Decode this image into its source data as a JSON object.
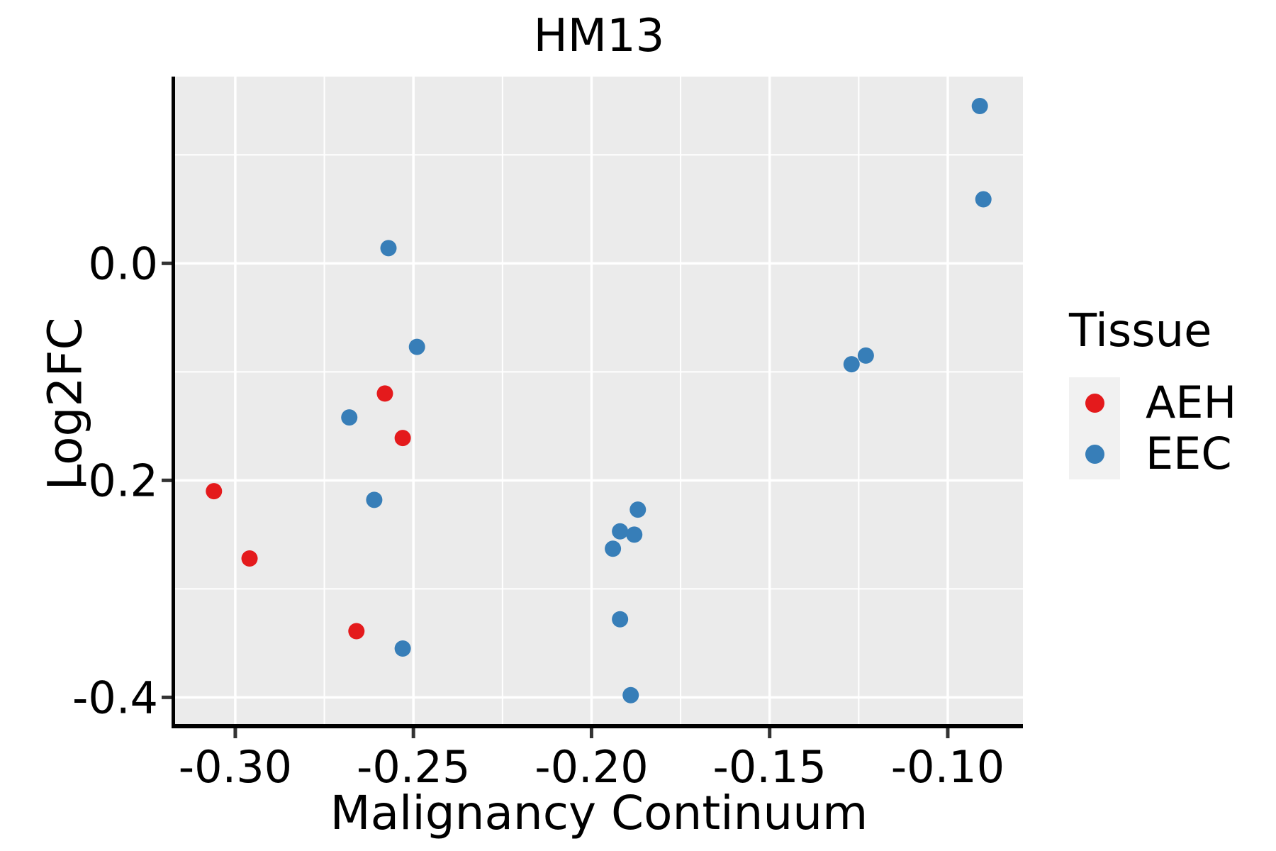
{
  "title": "HM13",
  "axes": {
    "x_label": "Malignancy Continuum",
    "y_label": "Log2FC"
  },
  "legend": {
    "title": "Tissue",
    "entries": [
      {
        "label": "AEH",
        "color": "#E41A1C"
      },
      {
        "label": "EEC",
        "color": "#377EB8"
      }
    ]
  },
  "colors": {
    "panel_background": "#EBEBEB",
    "grid": "#FFFFFF",
    "axis_line": "#000000",
    "tick": "#333333",
    "text": "#000000",
    "legend_key": "#F1F1F1"
  },
  "chart_data": {
    "type": "scatter",
    "title": "HM13",
    "xlabel": "Malignancy Continuum",
    "ylabel": "Log2FC",
    "xlim": [
      -0.3169,
      -0.0789
    ],
    "ylim": [
      -0.4246,
      0.1721
    ],
    "x_ticks": [
      -0.3,
      -0.25,
      -0.2,
      -0.15,
      -0.1
    ],
    "x_tick_labels": [
      "-0.30",
      "-0.25",
      "-0.20",
      "-0.15",
      "-0.10"
    ],
    "x_minor_ticks": [
      -0.275,
      -0.225,
      -0.175,
      -0.125
    ],
    "y_ticks": [
      0.0,
      -0.2,
      -0.4
    ],
    "y_tick_labels": [
      "0.0",
      "-0.2",
      "-0.4"
    ],
    "y_minor_ticks": [
      0.1,
      -0.1,
      -0.3
    ],
    "grid": true,
    "legend_position": "right",
    "point_radius_px": 11.5,
    "series": [
      {
        "name": "AEH",
        "color": "#E41A1C",
        "points": [
          [
            -0.306,
            -0.21
          ],
          [
            -0.296,
            -0.272
          ],
          [
            -0.258,
            -0.12
          ],
          [
            -0.253,
            -0.161
          ],
          [
            -0.266,
            -0.339
          ]
        ]
      },
      {
        "name": "EEC",
        "color": "#377EB8",
        "points": [
          [
            -0.257,
            0.014
          ],
          [
            -0.249,
            -0.077
          ],
          [
            -0.268,
            -0.142
          ],
          [
            -0.261,
            -0.218
          ],
          [
            -0.253,
            -0.355
          ],
          [
            -0.187,
            -0.227
          ],
          [
            -0.192,
            -0.247
          ],
          [
            -0.188,
            -0.25
          ],
          [
            -0.194,
            -0.263
          ],
          [
            -0.192,
            -0.328
          ],
          [
            -0.189,
            -0.398
          ],
          [
            -0.127,
            -0.093
          ],
          [
            -0.123,
            -0.085
          ],
          [
            -0.091,
            0.145
          ],
          [
            -0.09,
            0.059
          ]
        ]
      }
    ]
  }
}
